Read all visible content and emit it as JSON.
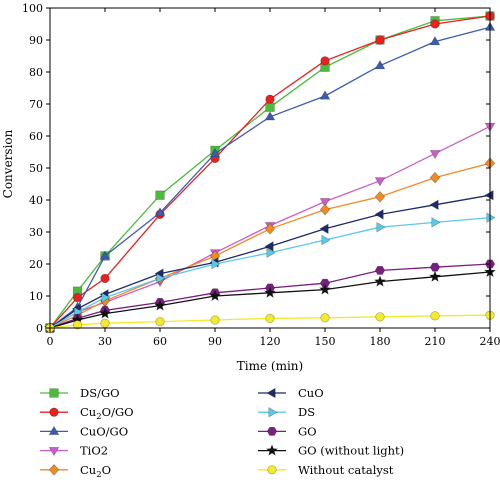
{
  "chart_data": {
    "type": "line",
    "xlabel": "Time (min)",
    "ylabel": "Conversion",
    "xlim": [
      0,
      240
    ],
    "ylim": [
      0,
      100
    ],
    "x_ticks": [
      0,
      30,
      60,
      90,
      120,
      150,
      180,
      210,
      240
    ],
    "y_ticks": [
      0,
      10,
      20,
      30,
      40,
      50,
      60,
      70,
      80,
      90,
      100
    ],
    "grid": false,
    "legend_placement": "bottom, two columns",
    "series": [
      {
        "name": "DS/GO",
        "label_main": "DS/GO",
        "label_sub": "",
        "label_rest": "",
        "color": "#4cbb3c",
        "marker": "square",
        "x": [
          0,
          15,
          30,
          60,
          90,
          120,
          150,
          180,
          210,
          240
        ],
        "values": [
          0,
          11.5,
          22.5,
          41.5,
          55.5,
          69,
          81.5,
          90,
          96,
          97.5
        ]
      },
      {
        "name": "Cu2O/GO",
        "label_main": "Cu",
        "label_sub": "2",
        "label_rest": "O/GO",
        "color": "#e8201f",
        "marker": "circle",
        "x": [
          0,
          15,
          30,
          60,
          90,
          120,
          150,
          180,
          210,
          240
        ],
        "values": [
          0,
          9.5,
          15.5,
          35.5,
          53,
          71.5,
          83.5,
          90,
          95,
          97.5
        ]
      },
      {
        "name": "CuO/GO",
        "label_main": "CuO/GO",
        "label_sub": "",
        "label_rest": "",
        "color": "#3c5cb0",
        "marker": "triangle-up",
        "x": [
          0,
          15,
          30,
          60,
          90,
          120,
          150,
          180,
          210,
          240
        ],
        "values": [
          0,
          6.5,
          22.5,
          36,
          54.5,
          66,
          72.5,
          82,
          89.5,
          94
        ]
      },
      {
        "name": "TiO2",
        "label_main": "TiO2",
        "label_sub": "",
        "label_rest": "",
        "color": "#cc5ec9",
        "marker": "triangle-down",
        "x": [
          0,
          15,
          30,
          60,
          90,
          120,
          150,
          180,
          210,
          240
        ],
        "values": [
          0,
          5,
          8,
          14.5,
          23.5,
          32,
          39.5,
          46,
          54.5,
          63
        ]
      },
      {
        "name": "Cu2O",
        "label_main": "Cu",
        "label_sub": "2",
        "label_rest": "O",
        "color": "#f08a24",
        "marker": "diamond",
        "x": [
          0,
          15,
          30,
          60,
          90,
          120,
          150,
          180,
          210,
          240
        ],
        "values": [
          0,
          4,
          8.5,
          15.5,
          22.5,
          31,
          37,
          41,
          47,
          51.5
        ]
      },
      {
        "name": "CuO",
        "label_main": "CuO",
        "label_sub": "",
        "label_rest": "",
        "color": "#1e2a6b",
        "marker": "triangle-left",
        "x": [
          0,
          15,
          30,
          60,
          90,
          120,
          150,
          180,
          210,
          240
        ],
        "values": [
          0,
          6,
          10.5,
          17,
          20.5,
          25.5,
          31,
          35.5,
          38.5,
          41.5
        ]
      },
      {
        "name": "DS",
        "label_main": "DS",
        "label_sub": "",
        "label_rest": "",
        "color": "#5cc8e8",
        "marker": "triangle-right",
        "x": [
          0,
          15,
          30,
          60,
          90,
          120,
          150,
          180,
          210,
          240
        ],
        "values": [
          0,
          5,
          9.5,
          15.5,
          20,
          23.5,
          27.5,
          31.5,
          33,
          34.5
        ]
      },
      {
        "name": "GO",
        "label_main": "GO",
        "label_sub": "",
        "label_rest": "",
        "color": "#7a1e82",
        "marker": "hexagon",
        "x": [
          0,
          15,
          30,
          60,
          90,
          120,
          150,
          180,
          210,
          240
        ],
        "values": [
          0,
          3,
          5.5,
          8,
          11,
          12.5,
          14,
          18,
          19,
          20
        ]
      },
      {
        "name": "GO (without light)",
        "label_main": "GO (without light)",
        "label_sub": "",
        "label_rest": "",
        "color": "#111111",
        "marker": "star",
        "x": [
          0,
          15,
          30,
          60,
          90,
          120,
          150,
          180,
          210,
          240
        ],
        "values": [
          0,
          2.5,
          4.5,
          7,
          10,
          11,
          12,
          14.5,
          16,
          17.5
        ]
      },
      {
        "name": "Without catalyst",
        "label_main": "Without catalyst",
        "label_sub": "",
        "label_rest": "",
        "color": "#f2ea2a",
        "marker": "circle",
        "x": [
          0,
          15,
          30,
          60,
          90,
          120,
          150,
          180,
          210,
          240
        ],
        "values": [
          0,
          1,
          1.5,
          2,
          2.5,
          3,
          3.2,
          3.5,
          3.8,
          4
        ]
      }
    ]
  }
}
